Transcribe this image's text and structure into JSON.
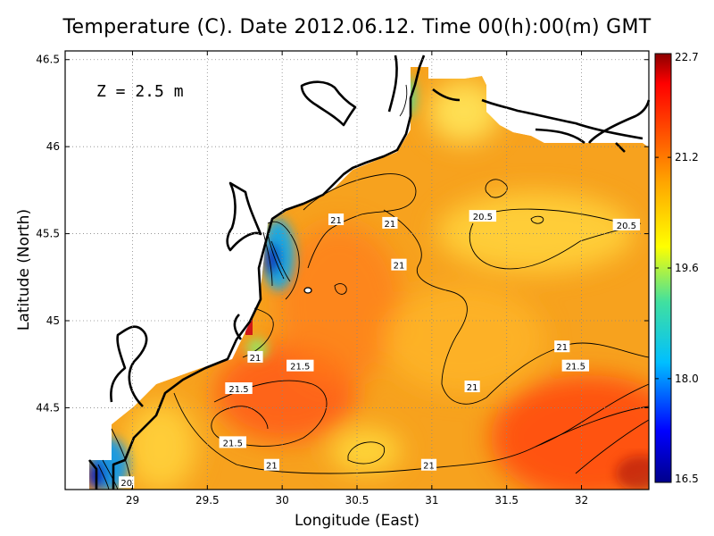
{
  "title": "Temperature (C). Date 2012.06.12. Time 00(h):00(m) GMT",
  "depth_label": "Z = 2.5 m",
  "axes": {
    "xlabel": "Longitude (East)",
    "ylabel": "Latitude (North)",
    "xlim": [
      28.55,
      32.45
    ],
    "ylim": [
      44.03,
      46.55
    ],
    "xticks": [
      "29",
      "29.5",
      "30",
      "30.5",
      "31",
      "31.5",
      "32"
    ],
    "yticks": [
      "44.5",
      "45",
      "45.5",
      "46",
      "46.5"
    ],
    "grid": "dotted"
  },
  "colorbar": {
    "ticks": [
      "16.5",
      "18.0",
      "19.6",
      "21.2",
      "22.7"
    ],
    "range": [
      16.5,
      22.7
    ],
    "colors": [
      "#00008b",
      "#0000ff",
      "#00bfff",
      "#40e0a0",
      "#ffff00",
      "#ffa500",
      "#ff4500",
      "#ff0000",
      "#8b0000"
    ]
  },
  "contour_labels": [
    {
      "text": "21",
      "lon": 30.36,
      "lat": 45.58
    },
    {
      "text": "21",
      "lon": 30.72,
      "lat": 45.56
    },
    {
      "text": "20.5",
      "lon": 31.34,
      "lat": 45.6
    },
    {
      "text": "20.5",
      "lon": 32.3,
      "lat": 45.55
    },
    {
      "text": "21",
      "lon": 30.78,
      "lat": 45.32
    },
    {
      "text": "21",
      "lon": 29.82,
      "lat": 44.79
    },
    {
      "text": "21.5",
      "lon": 30.12,
      "lat": 44.74
    },
    {
      "text": "21.5",
      "lon": 29.71,
      "lat": 44.61
    },
    {
      "text": "21",
      "lon": 31.27,
      "lat": 44.62
    },
    {
      "text": "21",
      "lon": 31.87,
      "lat": 44.85
    },
    {
      "text": "21.5",
      "lon": 31.96,
      "lat": 44.74
    },
    {
      "text": "21.5",
      "lon": 29.67,
      "lat": 44.3
    },
    {
      "text": "21",
      "lon": 29.93,
      "lat": 44.17
    },
    {
      "text": "21",
      "lon": 30.98,
      "lat": 44.17
    },
    {
      "text": "20",
      "lon": 28.96,
      "lat": 44.07
    }
  ]
}
